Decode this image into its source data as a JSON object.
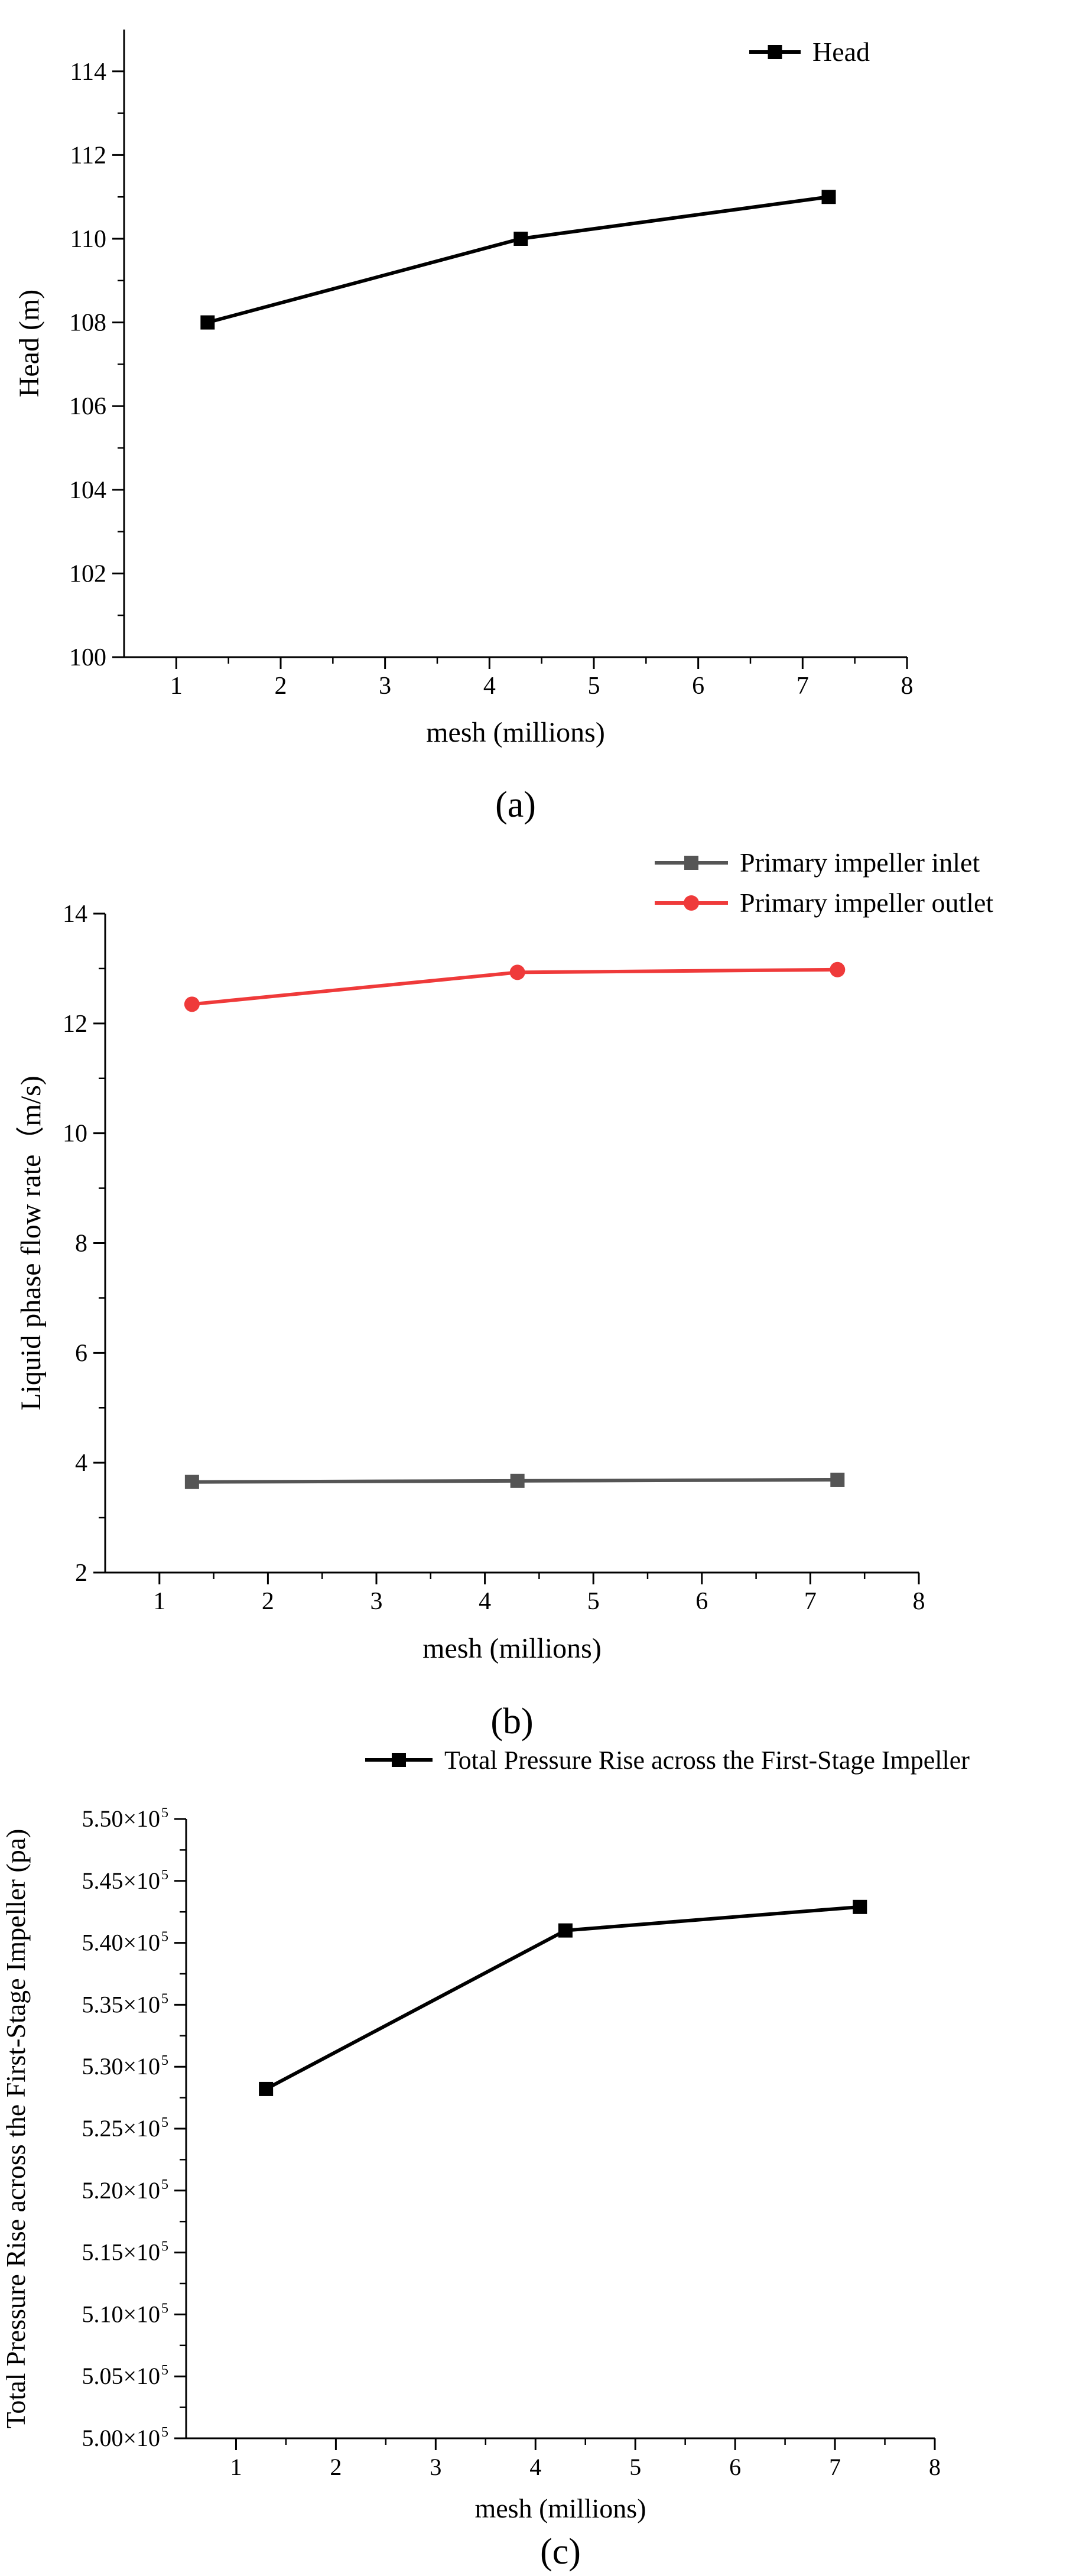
{
  "chart_data": [
    {
      "panel": "a",
      "type": "line",
      "caption": "(a)",
      "xlabel": "mesh (millions)",
      "ylabel": "Head (m)",
      "xlim": [
        0.5,
        8
      ],
      "ylim": [
        100,
        115
      ],
      "xticks": [
        1,
        2,
        3,
        4,
        5,
        6,
        7,
        8
      ],
      "yticks": [
        "100",
        "102",
        "104",
        "106",
        "108",
        "110",
        "112",
        "114"
      ],
      "legend_position": "top-right",
      "series": [
        {
          "name": "Head",
          "color": "#000000",
          "marker": "square",
          "x": [
            1.3,
            4.3,
            7.25
          ],
          "y": [
            108,
            110,
            111
          ]
        }
      ]
    },
    {
      "panel": "b",
      "type": "line",
      "caption": "(b)",
      "xlabel": "mesh (millions)",
      "ylabel": "Liquid phase flow rate（m/s)",
      "xlim": [
        0.5,
        8
      ],
      "ylim": [
        2,
        14
      ],
      "xticks": [
        1,
        2,
        3,
        4,
        5,
        6,
        7,
        8
      ],
      "yticks": [
        "2",
        "4",
        "6",
        "8",
        "10",
        "12",
        "14"
      ],
      "legend_position": "top-right",
      "series": [
        {
          "name": "Primary impeller inlet",
          "color": "#555555",
          "marker": "square",
          "x": [
            1.3,
            4.3,
            7.25
          ],
          "y": [
            3.65,
            3.67,
            3.69
          ]
        },
        {
          "name": "Primary impeller outlet",
          "color": "#ef3a3a",
          "marker": "circle",
          "x": [
            1.3,
            4.3,
            7.25
          ],
          "y": [
            12.35,
            12.93,
            12.98
          ]
        }
      ]
    },
    {
      "panel": "c",
      "type": "line",
      "caption": "(c)",
      "xlabel": "mesh (millions)",
      "ylabel": "Total Pressure Rise across the First-Stage Impeller (pa)",
      "xlim": [
        0.5,
        8
      ],
      "ylim": [
        500000,
        550000
      ],
      "xticks": [
        1,
        2,
        3,
        4,
        5,
        6,
        7,
        8
      ],
      "ytick_values": [
        500000,
        505000,
        510000,
        515000,
        520000,
        525000,
        530000,
        535000,
        540000,
        545000,
        550000
      ],
      "ytick_mantissas": [
        "5.00",
        "5.05",
        "5.10",
        "5.15",
        "5.20",
        "5.25",
        "5.30",
        "5.35",
        "5.40",
        "5.45",
        "5.50"
      ],
      "ytick_exponent": "5",
      "legend_position": "top-right",
      "series": [
        {
          "name": "Total Pressure Rise across the First-Stage Impeller",
          "color": "#000000",
          "marker": "square",
          "x": [
            1.3,
            4.3,
            7.25
          ],
          "y": [
            528200,
            541000,
            542900
          ]
        }
      ]
    }
  ]
}
